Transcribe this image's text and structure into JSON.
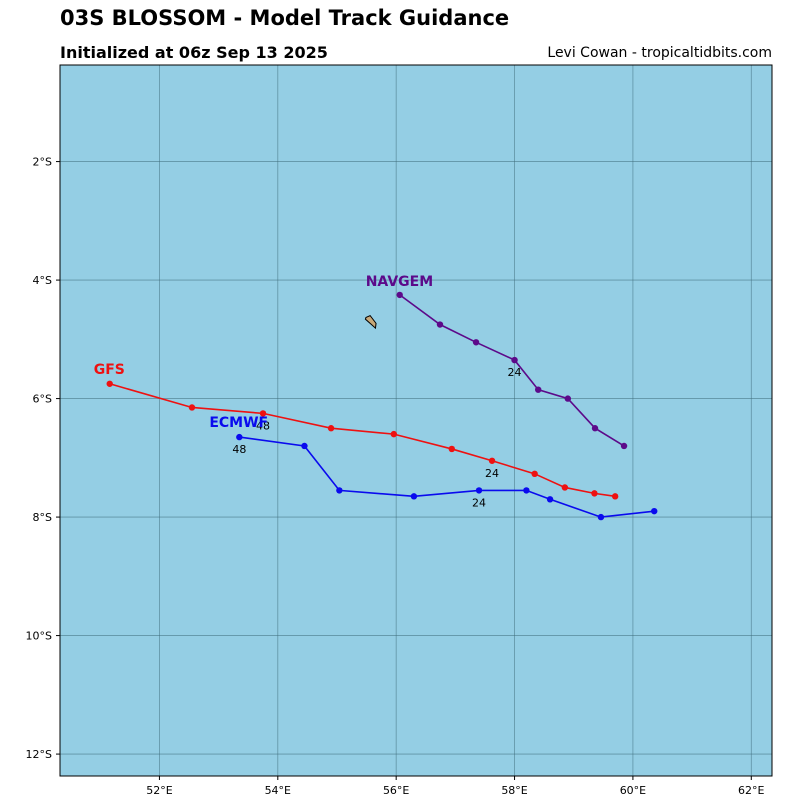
{
  "header": {
    "title": "03S BLOSSOM - Model Track Guidance",
    "subtitle": "Initialized at 06z Sep 13 2025",
    "credit": "Levi Cowan - tropicaltidbits.com"
  },
  "colors": {
    "ocean": "#94cee4",
    "grid": "#3d6b7a",
    "land": "#c8a878"
  },
  "chart_data": {
    "type": "map",
    "lon_range": [
      50.32,
      62.35
    ],
    "lat_range": [
      -12.37,
      -0.37
    ],
    "x_ticks": [
      {
        "value": 52,
        "label": "52°E"
      },
      {
        "value": 54,
        "label": "54°E"
      },
      {
        "value": 56,
        "label": "56°E"
      },
      {
        "value": 58,
        "label": "58°E"
      },
      {
        "value": 60,
        "label": "60°E"
      },
      {
        "value": 62,
        "label": "62°E"
      }
    ],
    "y_ticks": [
      {
        "value": -2,
        "label": "2°S"
      },
      {
        "value": -4,
        "label": "4°S"
      },
      {
        "value": -6,
        "label": "6°S"
      },
      {
        "value": -8,
        "label": "8°S"
      },
      {
        "value": -10,
        "label": "10°S"
      },
      {
        "value": -12,
        "label": "12°S"
      }
    ],
    "grid": true,
    "island": {
      "points": [
        [
          55.49,
          -4.63
        ],
        [
          55.56,
          -4.6
        ],
        [
          55.66,
          -4.73
        ],
        [
          55.65,
          -4.81
        ],
        [
          55.57,
          -4.74
        ],
        [
          55.48,
          -4.66
        ]
      ]
    },
    "series": [
      {
        "name": "NAVGEM",
        "color": "#5c0a8a",
        "points": [
          [
            59.85,
            -6.8
          ],
          [
            59.36,
            -6.5
          ],
          [
            58.9,
            -6.0
          ],
          [
            58.4,
            -5.85
          ],
          [
            58.0,
            -5.35
          ],
          [
            57.35,
            -5.05
          ],
          [
            56.74,
            -4.75
          ],
          [
            56.06,
            -4.25
          ]
        ],
        "hour_labels": [
          {
            "index": 4,
            "text": "24"
          }
        ]
      },
      {
        "name": "GFS",
        "color": "#ee1111",
        "points": [
          [
            59.7,
            -7.65
          ],
          [
            59.35,
            -7.6
          ],
          [
            58.85,
            -7.5
          ],
          [
            58.34,
            -7.27
          ],
          [
            57.62,
            -7.05
          ],
          [
            56.94,
            -6.85
          ],
          [
            55.96,
            -6.6
          ],
          [
            54.9,
            -6.5
          ],
          [
            53.75,
            -6.25
          ],
          [
            52.55,
            -6.15
          ],
          [
            51.16,
            -5.75
          ]
        ],
        "hour_labels": [
          {
            "index": 4,
            "text": "24"
          },
          {
            "index": 8,
            "text": "48"
          }
        ]
      },
      {
        "name": "ECMWF",
        "color": "#0a0aee",
        "points": [
          [
            60.36,
            -7.9
          ],
          [
            59.46,
            -8.0
          ],
          [
            58.6,
            -7.7
          ],
          [
            58.2,
            -7.55
          ],
          [
            57.4,
            -7.55
          ],
          [
            56.3,
            -7.65
          ],
          [
            55.04,
            -7.55
          ],
          [
            54.45,
            -6.8
          ],
          [
            53.35,
            -6.65
          ]
        ],
        "hour_labels": [
          {
            "index": 4,
            "text": "24"
          },
          {
            "index": 8,
            "text": "48"
          }
        ]
      }
    ]
  }
}
